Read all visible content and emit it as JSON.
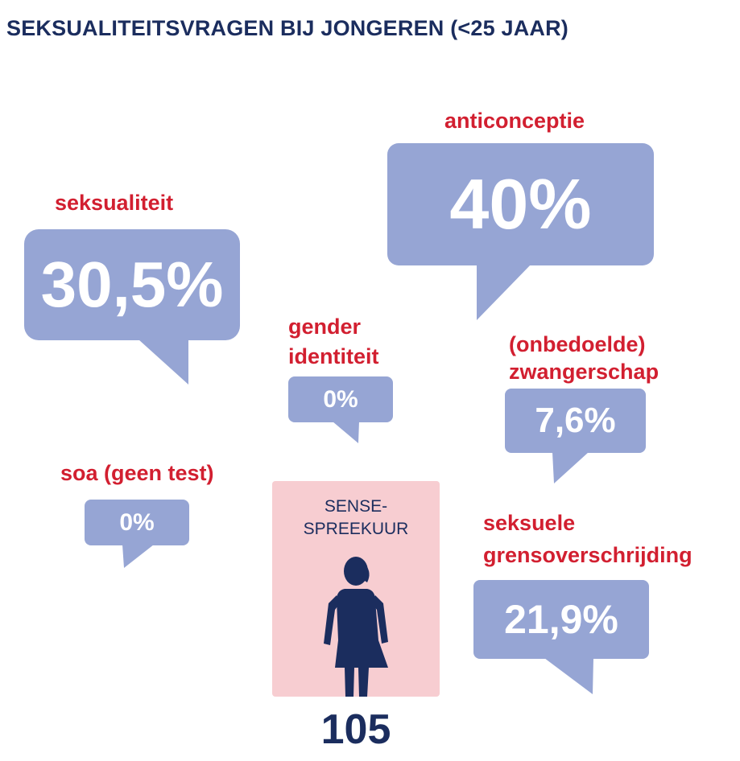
{
  "title": "SEKSUALITEITSVRAGEN BIJ JONGEREN (<25 JAAR)",
  "categories": {
    "seksualiteit": {
      "label": "seksualiteit",
      "value": "30,5%"
    },
    "anticonceptie": {
      "label": "anticonceptie",
      "value": "40%"
    },
    "gender_identiteit": {
      "label_line1": "gender",
      "label_line2": "identiteit",
      "value": "0%"
    },
    "zwangerschap": {
      "label_line1": "(onbedoelde)",
      "label_line2": "zwangerschap",
      "value": "7,6%"
    },
    "soa": {
      "label": "soa (geen test)",
      "value": "0%"
    },
    "grensoverschrijding": {
      "label_line1": "seksuele",
      "label_line2": "grensoverschrijding",
      "value": "21,9%"
    }
  },
  "center": {
    "line1": "SENSE-",
    "line2": "SPREEKUUR",
    "icon": "person-icon",
    "count": "105"
  },
  "colors": {
    "title": "#1b2d5e",
    "label": "#d21f30",
    "bubble": "#96a5d4",
    "panel": "#f7cdd1",
    "figure": "#1b2d5e"
  }
}
